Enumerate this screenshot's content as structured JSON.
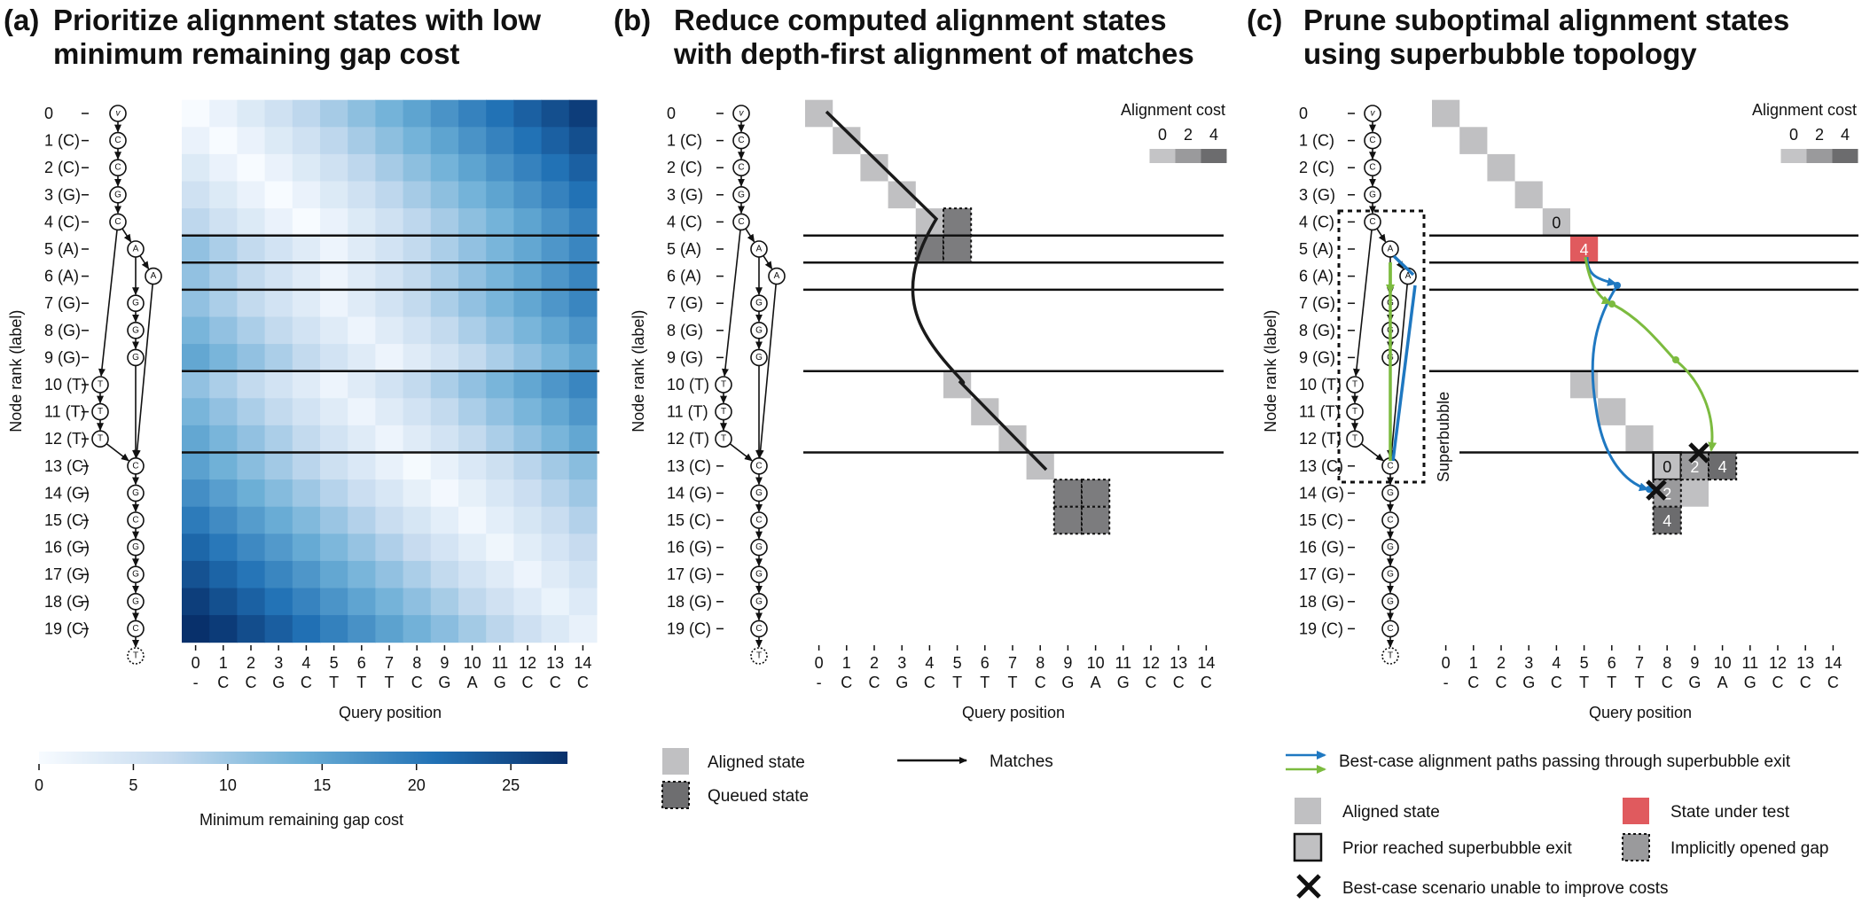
{
  "panels": {
    "a": {
      "letter": "(a)",
      "title": [
        "Prioritize alignment states with low",
        "minimum remaining gap cost"
      ]
    },
    "b": {
      "letter": "(b)",
      "title": [
        "Reduce computed alignment states",
        "with depth-first alignment of matches"
      ]
    },
    "c": {
      "letter": "(c)",
      "title": [
        "Prune suboptimal alignment states",
        "using superbubble topology"
      ]
    }
  },
  "axes": {
    "ylabel": "Node rank (label)",
    "xlabel": "Query position",
    "node_labels": [
      "0",
      "1 (C)",
      "2 (C)",
      "3 (G)",
      "4 (C)",
      "5 (A)",
      "6 (A)",
      "7 (G)",
      "8 (G)",
      "9 (G)",
      "10 (T)",
      "11 (T)",
      "12 (T)",
      "13 (C)",
      "14 (G)",
      "15 (C)",
      "16 (G)",
      "17 (G)",
      "18 (G)",
      "19 (C)"
    ],
    "query_positions": [
      "0",
      "1",
      "2",
      "3",
      "4",
      "5",
      "6",
      "7",
      "8",
      "9",
      "10",
      "11",
      "12",
      "13",
      "14"
    ],
    "query_chars": [
      "-",
      "C",
      "C",
      "G",
      "C",
      "T",
      "T",
      "T",
      "C",
      "G",
      "A",
      "G",
      "C",
      "C",
      "C"
    ]
  },
  "graph": {
    "node_chars": [
      "v",
      "C",
      "C",
      "G",
      "C",
      "A",
      "A",
      "G",
      "G",
      "G",
      "T",
      "T",
      "T",
      "C",
      "G",
      "C",
      "G",
      "G",
      "G",
      "C",
      "T"
    ],
    "superbubble_boundaries": [
      4.5,
      5.5,
      6.5,
      9.5,
      12.5
    ]
  },
  "colorbar": {
    "label": "Minimum remaining gap cost",
    "ticks": [
      "0",
      "5",
      "10",
      "15",
      "20",
      "25"
    ],
    "max": 28
  },
  "chart_data": {
    "type": "heatmap",
    "rows": 20,
    "cols": 15,
    "description_of_values": "Minimum remaining gap cost per node rank and query position",
    "ylabel": "Node rank (label)",
    "xlabel": "Query position",
    "range": [
      0,
      28
    ]
  },
  "panel_b": {
    "cost_legend_title": "Alignment cost",
    "cost_ticks": [
      "0",
      "2",
      "4"
    ],
    "aligned_states": [
      [
        0,
        0
      ],
      [
        1,
        1
      ],
      [
        2,
        2
      ],
      [
        3,
        3
      ],
      [
        4,
        4
      ],
      [
        10,
        5
      ],
      [
        11,
        6
      ],
      [
        12,
        7
      ],
      [
        13,
        8
      ]
    ],
    "queued_states": [
      [
        4,
        5
      ],
      [
        5,
        4
      ],
      [
        5,
        5
      ],
      [
        14,
        9
      ],
      [
        14,
        10
      ],
      [
        15,
        9
      ],
      [
        15,
        10
      ]
    ],
    "legend": {
      "aligned": "Aligned state",
      "queued": "Queued state",
      "matches": "Matches"
    }
  },
  "panel_c": {
    "cost_legend_title": "Alignment cost",
    "cost_ticks": [
      "0",
      "2",
      "4"
    ],
    "superbubble_label": "Superbubble",
    "aligned_states": [
      [
        0,
        0
      ],
      [
        1,
        1
      ],
      [
        2,
        2
      ],
      [
        3,
        3
      ],
      [
        4,
        4
      ],
      [
        10,
        5
      ],
      [
        11,
        6
      ],
      [
        12,
        7
      ],
      [
        13,
        8
      ],
      [
        14,
        9
      ]
    ],
    "cell_values": [
      {
        "row": 4,
        "col": 4,
        "text": "0"
      },
      {
        "row": 5,
        "col": 5,
        "text": "4"
      },
      {
        "row": 13,
        "col": 8,
        "text": "0"
      },
      {
        "row": 13,
        "col": 9,
        "text": "2"
      },
      {
        "row": 13,
        "col": 10,
        "text": "4"
      },
      {
        "row": 14,
        "col": 8,
        "text": "2"
      },
      {
        "row": 15,
        "col": 8,
        "text": "4"
      }
    ],
    "legend": {
      "paths": "Best-case alignment paths passing through superbubble exit",
      "aligned": "Aligned state",
      "under_test": "State under test",
      "prior_exit": "Prior reached superbubble exit",
      "implicit_gap": "Implicitly opened gap",
      "unable": "Best-case scenario unable to improve costs"
    }
  },
  "colors": {
    "aligned": "#c0c0c2",
    "queued": "#6e6e70",
    "under_test": "#e05a5e",
    "blue_path": "#1f78c1",
    "green_path": "#7cbb3f",
    "cost0": "#c4c4c6",
    "cost2": "#9a9a9c",
    "cost4": "#6c6c6e"
  }
}
